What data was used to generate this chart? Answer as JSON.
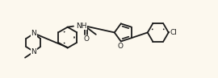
{
  "background_color": "#fcf8ee",
  "line_color": "#1a1a1a",
  "line_width": 1.3,
  "font_size": 6.5,
  "fig_w": 2.7,
  "fig_h": 0.97,
  "dpi": 100,
  "xlim": [
    0,
    10
  ],
  "ylim": [
    0,
    3.6
  ]
}
